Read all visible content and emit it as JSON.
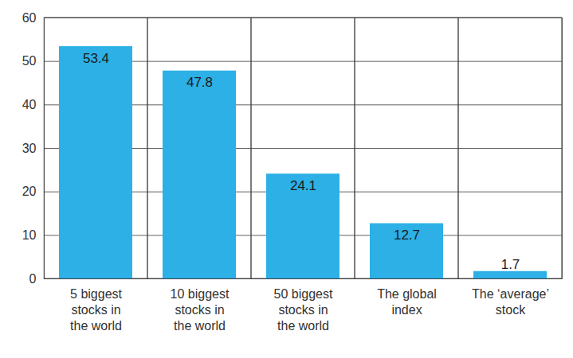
{
  "chart_data": {
    "type": "bar",
    "categories": [
      "5 biggest\nstocks in\nthe world",
      "10 biggest\nstocks in\nthe world",
      "50 biggest\nstocks in\nthe world",
      "The global\nindex",
      "The ‘average’\nstock"
    ],
    "values": [
      53.4,
      47.8,
      24.1,
      12.7,
      1.7
    ],
    "color": "#2cb0e6",
    "ylim": [
      0,
      60
    ],
    "yticks": [
      0,
      10,
      20,
      30,
      40,
      50,
      60
    ],
    "grid": true,
    "data_labels": true
  }
}
